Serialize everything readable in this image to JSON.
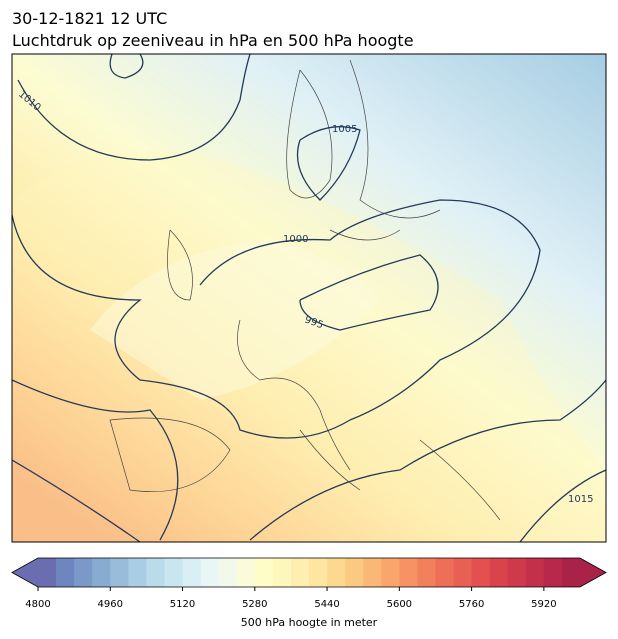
{
  "header": {
    "title": "30-12-1821 12 UTC",
    "subtitle": "Luchtdruk op zeeniveau in hPa en 500 hPa hoogte"
  },
  "map": {
    "contour_labels": [
      "1010",
      "1005",
      "1000",
      "995",
      "1015"
    ]
  },
  "colorbar": {
    "label": "500 hPa hoogte in meter",
    "lim": [
      4800,
      6000
    ],
    "ticks": [
      4800,
      4960,
      5120,
      5280,
      5440,
      5600,
      5760,
      5920
    ],
    "colors": [
      "#6a6eb0",
      "#6e86bf",
      "#7a98c8",
      "#88abd2",
      "#98bcda",
      "#a9cde3",
      "#b9dbea",
      "#c9e6f0",
      "#d9eff5",
      "#e8f6f6",
      "#f2f9ea",
      "#fafbd8",
      "#fefdc8",
      "#fef7bb",
      "#feefb0",
      "#fee5a0",
      "#fdd890",
      "#fcc982",
      "#fbb776",
      "#f9a56b",
      "#f69263",
      "#f2805c",
      "#ee6f57",
      "#e95f53",
      "#e2514f",
      "#d9444c",
      "#cf3a4b",
      "#c33049",
      "#b8284a",
      "#aa2248"
    ]
  }
}
